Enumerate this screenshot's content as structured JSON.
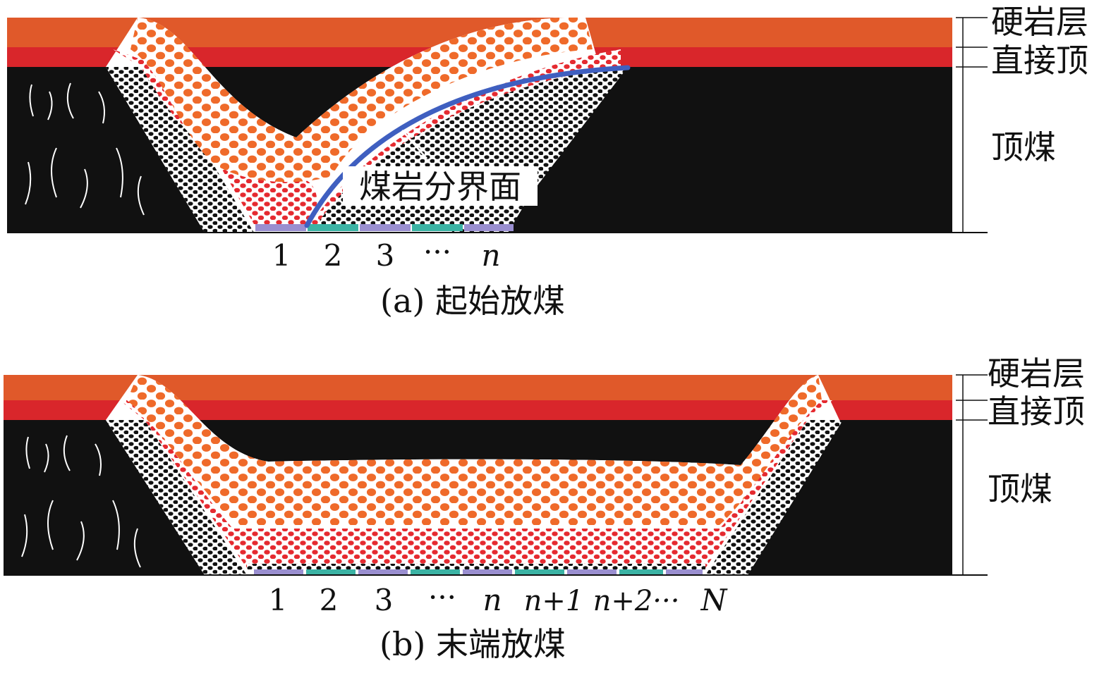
{
  "panel_a": {
    "caption": "(a) 起始放煤",
    "layers": {
      "hard_rock": "硬岩层",
      "immediate_roof": "直接顶",
      "top_coal": "顶煤"
    },
    "interface_label": "煤岩分界面",
    "outlets": [
      "1",
      "2",
      "3",
      "···",
      "n"
    ]
  },
  "panel_b": {
    "caption": "(b) 末端放煤",
    "layers": {
      "hard_rock": "硬岩层",
      "immediate_roof": "直接顶",
      "top_coal": "顶煤"
    },
    "outlets": [
      "1",
      "2",
      "3",
      "···",
      "n",
      "n+1",
      "n+2···",
      "N"
    ]
  },
  "colors": {
    "hard_rock": "#e0592a",
    "immediate_roof": "#d9262b",
    "top_coal": "#111111",
    "orange_rock": "#ef6a2a",
    "red_rock": "#e52a30",
    "interface_line": "#3f5fc0",
    "outlet_purple": "#9a8fd0",
    "outlet_teal": "#3bb3a4"
  }
}
